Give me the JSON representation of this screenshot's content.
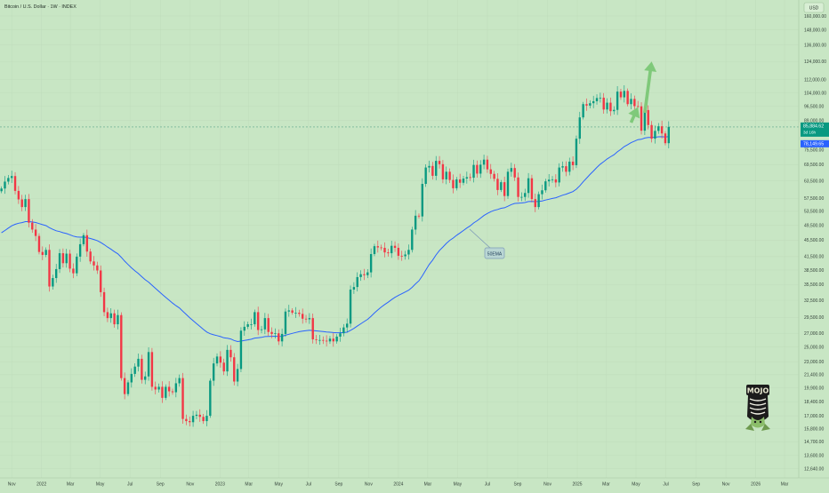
{
  "header": {
    "title": "Bitcoin / U.S. Dollar · 1W · INDEX"
  },
  "currency_button": "USD",
  "colors": {
    "background": "#c8e6c4",
    "up": "#089981",
    "down": "#f23645",
    "ma": "#2962ff",
    "arrow": "#7fc97a",
    "price_tag": "#089981",
    "ma_tag": "#2962ff"
  },
  "price_label": {
    "value": "85,884.62",
    "countdown": "3d 16h"
  },
  "ma_label": {
    "value": "78,149.65"
  },
  "annotation": "50EMA",
  "logo": {
    "text": "MOJO",
    "icon": "mojo-mask-logo"
  },
  "chart_data": {
    "type": "candlestick",
    "title": "Bitcoin / U.S. Dollar · 1W · INDEX",
    "y_scale": "log",
    "ylim": [
      12000,
      175000
    ],
    "y_ticks": [
      {
        "value": 160000,
        "label": "160,000.00"
      },
      {
        "value": 148000,
        "label": "148,000.00"
      },
      {
        "value": 136000,
        "label": "136,000.00"
      },
      {
        "value": 124000,
        "label": "124,000.00"
      },
      {
        "value": 112000,
        "label": "112,000.00"
      },
      {
        "value": 104000,
        "label": "104,000.00"
      },
      {
        "value": 96500,
        "label": "96,500.00"
      },
      {
        "value": 89000,
        "label": "89,000.00"
      },
      {
        "value": 75500,
        "label": "75,500.00"
      },
      {
        "value": 69500,
        "label": "69,500.00"
      },
      {
        "value": 63500,
        "label": "63,500.00"
      },
      {
        "value": 57500,
        "label": "57,500.00"
      },
      {
        "value": 53500,
        "label": "53,500.00"
      },
      {
        "value": 49500,
        "label": "49,500.00"
      },
      {
        "value": 45500,
        "label": "45,500.00"
      },
      {
        "value": 41500,
        "label": "41,500.00"
      },
      {
        "value": 38500,
        "label": "38,500.00"
      },
      {
        "value": 35500,
        "label": "35,500.00"
      },
      {
        "value": 32500,
        "label": "32,500.00"
      },
      {
        "value": 29500,
        "label": "29,500.00"
      },
      {
        "value": 27000,
        "label": "27,000.00"
      },
      {
        "value": 25000,
        "label": "25,000.00"
      },
      {
        "value": 23000,
        "label": "23,000.00"
      },
      {
        "value": 21400,
        "label": "21,400.00"
      },
      {
        "value": 19900,
        "label": "19,900.00"
      },
      {
        "value": 18400,
        "label": "18,400.00"
      },
      {
        "value": 17000,
        "label": "17,000.00"
      },
      {
        "value": 15800,
        "label": "15,800.00"
      },
      {
        "value": 14700,
        "label": "14,700.00"
      },
      {
        "value": 13600,
        "label": "13,600.00"
      },
      {
        "value": 12640,
        "label": "12,640.00"
      }
    ],
    "x_ticks": [
      {
        "date": "2021-11-01",
        "label": "Nov"
      },
      {
        "date": "2022-01-01",
        "label": "2022"
      },
      {
        "date": "2022-03-01",
        "label": "Mar"
      },
      {
        "date": "2022-05-01",
        "label": "May"
      },
      {
        "date": "2022-07-01",
        "label": "Jul"
      },
      {
        "date": "2022-09-01",
        "label": "Sep"
      },
      {
        "date": "2022-11-01",
        "label": "Nov"
      },
      {
        "date": "2023-01-01",
        "label": "2023"
      },
      {
        "date": "2023-03-01",
        "label": "Mar"
      },
      {
        "date": "2023-05-01",
        "label": "May"
      },
      {
        "date": "2023-07-01",
        "label": "Jul"
      },
      {
        "date": "2023-09-01",
        "label": "Sep"
      },
      {
        "date": "2023-11-01",
        "label": "Nov"
      },
      {
        "date": "2024-01-01",
        "label": "2024"
      },
      {
        "date": "2024-03-01",
        "label": "Mar"
      },
      {
        "date": "2024-05-01",
        "label": "May"
      },
      {
        "date": "2024-07-01",
        "label": "Jul"
      },
      {
        "date": "2024-09-01",
        "label": "Sep"
      },
      {
        "date": "2024-11-01",
        "label": "Nov"
      },
      {
        "date": "2025-01-01",
        "label": "2025"
      },
      {
        "date": "2025-03-01",
        "label": "Mar"
      },
      {
        "date": "2025-05-01",
        "label": "May"
      },
      {
        "date": "2025-07-01",
        "label": "Jul"
      },
      {
        "date": "2025-09-01",
        "label": "Sep"
      },
      {
        "date": "2025-11-01",
        "label": "Nov"
      },
      {
        "date": "2026-01-01",
        "label": "2026"
      },
      {
        "date": "2026-03-01",
        "label": "Mar"
      }
    ],
    "xlim": [
      "2021-10-08",
      "2026-03-30"
    ],
    "candles_weekly_start": "2021-10-11",
    "close": [
      60800,
      63200,
      64500,
      65200,
      60000,
      57200,
      54800,
      57300,
      50200,
      48300,
      46600,
      42600,
      41900,
      43100,
      35100,
      36800,
      38700,
      42300,
      40000,
      42200,
      38800,
      37800,
      41500,
      44500,
      46800,
      42700,
      40400,
      39500,
      38400,
      34000,
      30400,
      29400,
      30200,
      28400,
      29900,
      21000,
      19200,
      20500,
      21500,
      22400,
      23400,
      20800,
      21200,
      24300,
      20000,
      19700,
      20000,
      18800,
      20000,
      19500,
      19400,
      20400,
      21000,
      16700,
      16500,
      16400,
      17000,
      17100,
      16900,
      16500,
      17000,
      20700,
      22800,
      23700,
      22900,
      21800,
      24600,
      23600,
      20600,
      22100,
      27400,
      28000,
      28400,
      28400,
      30400,
      27500,
      27600,
      29400,
      27200,
      26900,
      27000,
      25800,
      26900,
      30500,
      30700,
      30300,
      30300,
      30100,
      29300,
      29200,
      29400,
      26100,
      26000,
      26000,
      25900,
      25800,
      26200,
      25800,
      26500,
      27000,
      27900,
      28500,
      34500,
      35000,
      37000,
      37600,
      37400,
      38000,
      42100,
      44000,
      43700,
      43600,
      42500,
      42300,
      44100,
      43600,
      41700,
      41600,
      42000,
      43100,
      48300,
      52200,
      52000,
      62400,
      68400,
      69000,
      65300,
      71000,
      69700,
      64000,
      66800,
      63800,
      60900,
      64000,
      62800,
      64300,
      64800,
      64600,
      69400,
      66100,
      69500,
      71500,
      67700,
      66000,
      64200,
      60300,
      63000,
      58300,
      66800,
      68200,
      64700,
      58000,
      58000,
      59300,
      64400,
      57300,
      54800,
      58900,
      60200,
      63300,
      63900,
      64000,
      62900,
      68400,
      68900,
      66800,
      70700,
      69300,
      80400,
      90600,
      97600,
      96800,
      98100,
      99200,
      101000,
      101200,
      94700,
      98400,
      93800,
      94500,
      104700,
      101400,
      105100,
      97600,
      100500,
      96500,
      96400,
      84100,
      94400,
      86800,
      80400,
      84000,
      86200,
      82800,
      78400,
      85900
    ],
    "ma": {
      "label": "50EMA",
      "period": 50,
      "last_value": 78149.65
    },
    "last_price": 85884.62,
    "projection_arrows": [
      {
        "from": "2025-04-21",
        "to_date": "2025-05-05",
        "from_value": 88000,
        "to_value": 96000
      },
      {
        "from": "2025-05-19",
        "to_date": "2025-06-02",
        "from_value": 93000,
        "to_value": 124000
      }
    ]
  }
}
